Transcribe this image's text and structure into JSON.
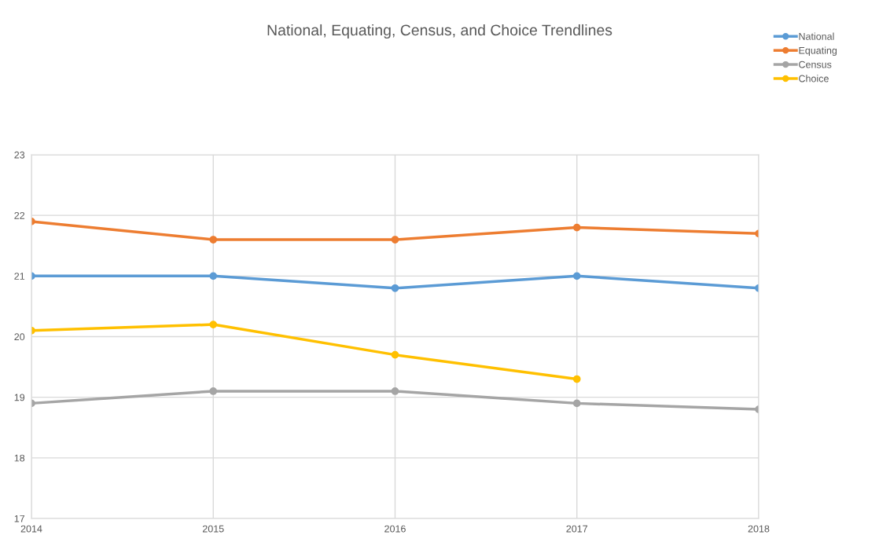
{
  "chart_data": {
    "type": "line",
    "title": "National, Equating, Census, and Choice Trendlines",
    "x": [
      2014,
      2015,
      2016,
      2017,
      2018
    ],
    "series": [
      {
        "name": "National",
        "color": "#5b9bd5",
        "values": [
          21.0,
          21.0,
          20.8,
          21.0,
          20.8
        ]
      },
      {
        "name": "Equating",
        "color": "#ed7d31",
        "values": [
          21.9,
          21.6,
          21.6,
          21.8,
          21.7
        ]
      },
      {
        "name": "Census",
        "color": "#a5a5a5",
        "values": [
          18.9,
          19.1,
          19.1,
          18.9,
          18.8
        ]
      },
      {
        "name": "Choice",
        "color": "#ffc000",
        "values": [
          20.1,
          20.2,
          19.7,
          19.3,
          null
        ]
      }
    ],
    "xlim": [
      2014,
      2018
    ],
    "xticks": [
      2014,
      2015,
      2016,
      2017,
      2018
    ],
    "ylim": [
      17,
      23
    ],
    "yticks": [
      17,
      18,
      19,
      20,
      21,
      22,
      23
    ],
    "grid": true,
    "legend": "top right",
    "marker": "circle",
    "line_style": "solid"
  }
}
